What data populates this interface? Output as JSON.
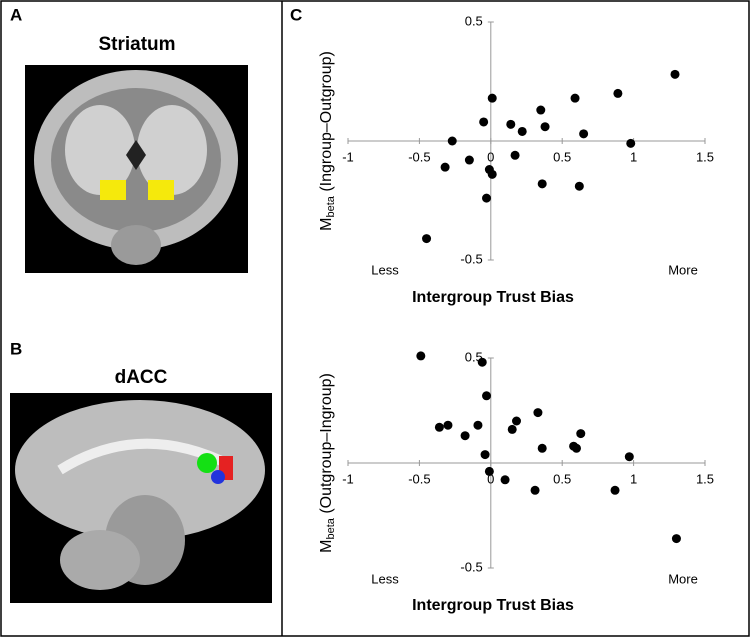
{
  "panels": {
    "a": "A",
    "b": "B",
    "c": "C",
    "a_title": "Striatum",
    "b_title": "dACC"
  },
  "chart_data": [
    {
      "type": "scatter",
      "xlabel": "Intergroup Trust Bias",
      "ylabel": {
        "main": "M",
        "sub": "beta",
        "rest": " (Ingroup–Outgroup)"
      },
      "annotations": [
        "Less",
        "More"
      ],
      "xlim": [
        -1,
        1.5
      ],
      "ylim": [
        -0.5,
        0.5
      ],
      "xticks": [
        -1,
        -0.5,
        0,
        0.5,
        1,
        1.5
      ],
      "yticks": [
        -0.5,
        0.5
      ],
      "color": "#000000",
      "x": [
        1.29,
        0.89,
        0.59,
        0.01,
        0.35,
        -0.05,
        0.14,
        0.22,
        0.38,
        0.65,
        -0.27,
        0.98,
        -0.15,
        -0.32,
        0.17,
        -0.01,
        0.01,
        0.36,
        0.62,
        -0.03,
        -0.45
      ],
      "values": [
        0.28,
        0.2,
        0.18,
        0.18,
        0.13,
        0.08,
        0.07,
        0.04,
        0.06,
        0.03,
        0.0,
        -0.01,
        -0.08,
        -0.11,
        -0.06,
        -0.12,
        -0.14,
        -0.18,
        -0.19,
        -0.24,
        -0.41
      ]
    },
    {
      "type": "scatter",
      "xlabel": "Intergroup Trust Bias",
      "ylabel": {
        "main": "M",
        "sub": "beta",
        "rest": " (Outgroup–Ingroup)"
      },
      "annotations": [
        "Less",
        "More"
      ],
      "xlim": [
        -1,
        1.5
      ],
      "ylim": [
        -0.5,
        0.5
      ],
      "xticks": [
        -1,
        -0.5,
        0,
        0.5,
        1,
        1.5
      ],
      "yticks": [
        -0.5,
        0.5
      ],
      "color": "#000000",
      "x": [
        -0.49,
        -0.06,
        -0.03,
        0.33,
        0.18,
        -0.09,
        -0.36,
        -0.3,
        0.15,
        -0.18,
        0.63,
        0.58,
        0.6,
        0.36,
        -0.04,
        0.97,
        -0.01,
        0.1,
        0.31,
        0.87,
        1.3
      ],
      "values": [
        0.51,
        0.48,
        0.32,
        0.24,
        0.2,
        0.18,
        0.17,
        0.18,
        0.16,
        0.13,
        0.14,
        0.08,
        0.07,
        0.07,
        0.04,
        0.03,
        -0.04,
        -0.08,
        -0.13,
        -0.13,
        -0.36
      ]
    }
  ]
}
